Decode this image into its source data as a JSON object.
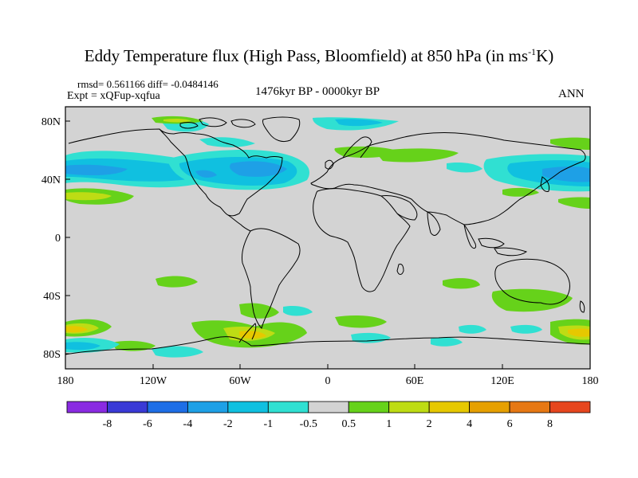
{
  "title": {
    "main": "Eddy Temperature flux (High Pass, Bloomfield) at 850 hPa (in ms",
    "sup": "-1",
    "tail": "K)"
  },
  "subtitles": {
    "stats": "rmsd= 0.561166 diff= -0.0484146",
    "expt": "Expt = xQFup-xqfua",
    "period": "1476kyr BP - 0000kyr BP",
    "season": "ANN"
  },
  "axes": {
    "x_ticks": [
      "180",
      "120W",
      "60W",
      "0",
      "60E",
      "120E",
      "180"
    ],
    "y_ticks": [
      "80N",
      "40N",
      "0",
      "40S",
      "80S"
    ]
  },
  "colorbar": {
    "labels": [
      "-8",
      "-6",
      "-4",
      "-2",
      "-1",
      "-0.5",
      "0.5",
      "1",
      "2",
      "4",
      "6",
      "8"
    ],
    "colors": [
      "#8a2be2",
      "#3a3ad6",
      "#1e6ee6",
      "#1ea0e6",
      "#10c0e0",
      "#30e0d2",
      "#d3d3d3",
      "#66d21a",
      "#bedc14",
      "#e6c800",
      "#e6a000",
      "#e67814",
      "#e6461e"
    ]
  },
  "colors": {
    "land_background": "#d3d3d3",
    "coastline": "#000000"
  }
}
